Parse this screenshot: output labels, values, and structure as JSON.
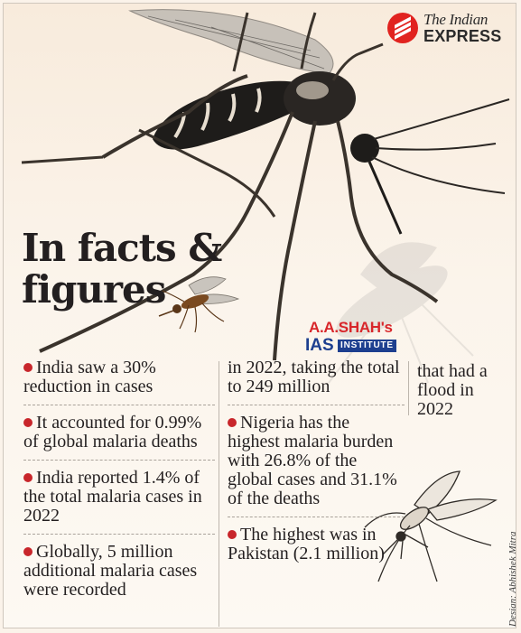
{
  "brand": {
    "line1": "The Indian",
    "line2": "EXPRESS",
    "color": "#e1231f"
  },
  "headline": {
    "line1": "In facts &",
    "line2": "figures"
  },
  "institute": {
    "name": "A.A.SHAH's",
    "ias": "IAS",
    "tag": "INSTITUTE"
  },
  "accent_color": "#c8262b",
  "columns": [
    {
      "facts": [
        {
          "text": "India saw a 30% reduction in cases",
          "bullet": true
        },
        {
          "text": "It accounted for 0.99% of global malaria deaths",
          "bullet": true
        },
        {
          "text": "India reported 1.4% of the total malaria cases in 2022",
          "bullet": true
        },
        {
          "text": "Globally, 5 million additional malaria cases were recorded",
          "bullet": true
        }
      ]
    },
    {
      "facts": [
        {
          "text": "in 2022, taking the total to 249 million",
          "bullet": false
        },
        {
          "text": "Nigeria has the highest malaria burden with 26.8% of the global cases and 31.1% of the deaths",
          "bullet": true
        },
        {
          "text": "The highest was in Pakistan (2.1 million)",
          "bullet": true
        }
      ]
    },
    {
      "facts": [
        {
          "text": "that had a flood in 2022",
          "bullet": false
        }
      ]
    }
  ],
  "credit": "Design: Abhishek Mitra",
  "illustrations": [
    "mosquito-main",
    "mosquito-small",
    "mosquito-shadow",
    "mosquito-outline"
  ]
}
